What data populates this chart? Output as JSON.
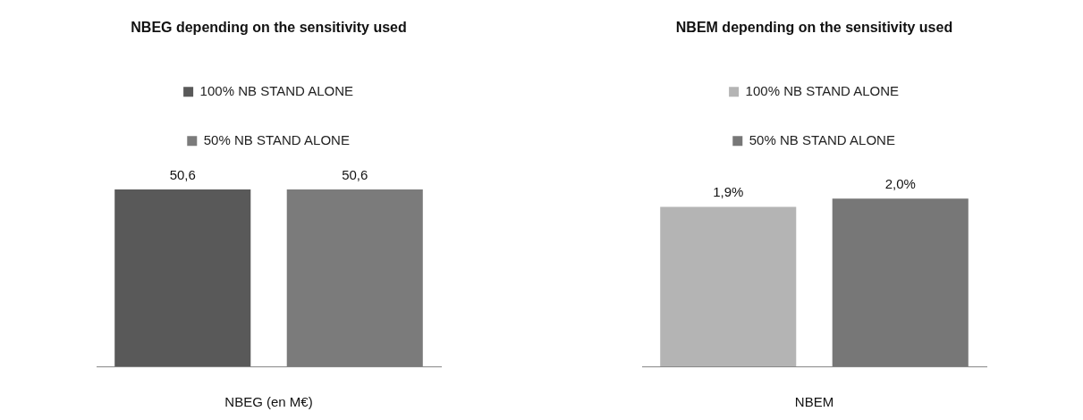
{
  "chart_data": [
    {
      "type": "bar",
      "title": "NBEG depending on the sensitivity used",
      "xlabel": "NBEG (en M€)",
      "categories": [
        null,
        null
      ],
      "stacked": true,
      "legend": "top",
      "tick_labels": "x",
      "series": [
        {
          "name": "100% NB STAND ALONE",
          "color": "#595959",
          "values": [
            50.6,
            null
          ],
          "value_labels": [
            "50,6",
            null
          ]
        },
        {
          "name": "50% NB STAND ALONE",
          "color": "#7b7b7b",
          "values": [
            null,
            50.6
          ],
          "value_labels": [
            null,
            "50,6"
          ]
        }
      ]
    },
    {
      "type": "bar",
      "title": "NBEM depending on the sensitivity used",
      "xlabel": "NBEM",
      "categories": [
        null,
        null
      ],
      "stacked": true,
      "legend": "top",
      "tick_labels": "x",
      "series": [
        {
          "name": "100% NB STAND ALONE",
          "color": "#b4b4b4",
          "values": [
            1.9,
            null
          ],
          "value_labels": [
            "1,9%",
            null
          ]
        },
        {
          "name": "50% NB STAND ALONE",
          "color": "#777777",
          "values": [
            null,
            2.0
          ],
          "value_labels": [
            null,
            "2,0%"
          ]
        }
      ]
    }
  ]
}
